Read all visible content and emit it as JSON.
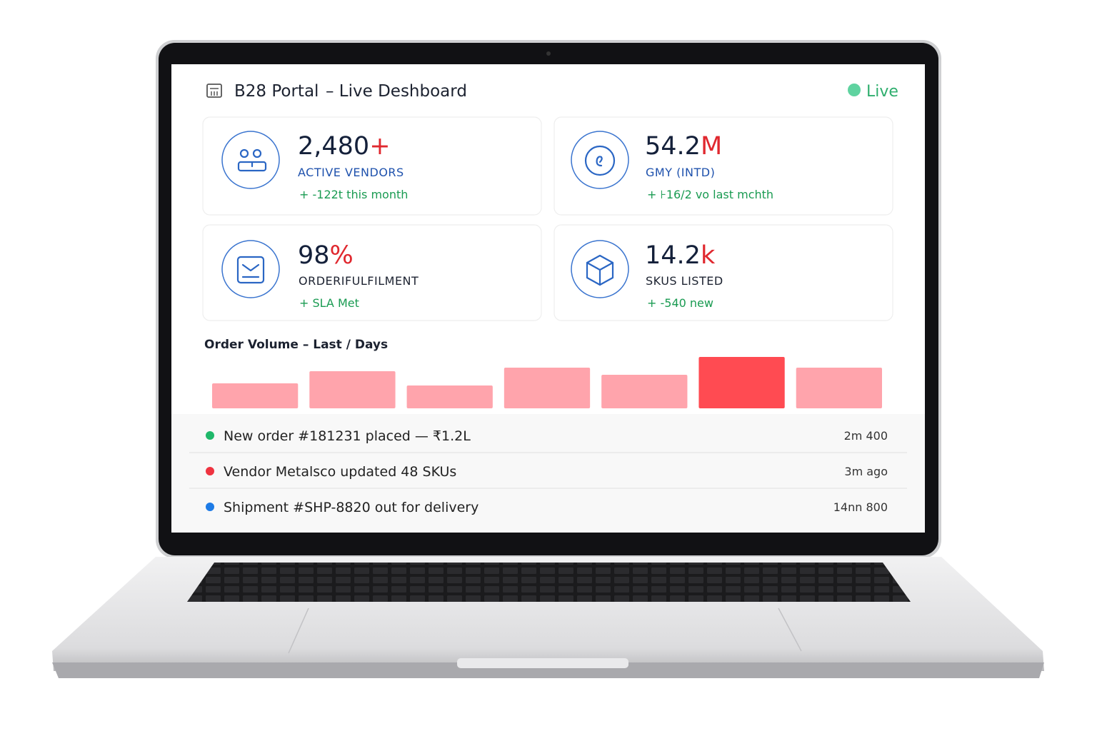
{
  "header": {
    "brand": "B28 Portal",
    "title": "– Live Deshboard",
    "status": "Live"
  },
  "kpis": [
    {
      "value": "2,480",
      "suffix": "+",
      "label": "ACTIVE VENDORS",
      "note": "+  -122t this month"
    },
    {
      "value": "54.2",
      "suffix": "M",
      "label": "GMY (INTD)",
      "note": "+  ⊦16/2 vo last mchth"
    },
    {
      "value": "98",
      "suffix": "%",
      "label": "ORDERIFULFILMENT",
      "note": "+  SLA Met"
    },
    {
      "value": "14.2",
      "suffix": "k",
      "label": "SKUS LISTED",
      "note": "+  -540 new"
    }
  ],
  "order_volume": {
    "title": "Order Volume – Last / Days",
    "values": [
      35,
      52,
      32,
      57,
      47,
      72,
      57
    ],
    "colors": [
      "#ffa4ac",
      "#ffa4ac",
      "#ffa4ac",
      "#ffa4ac",
      "#ffa4ac",
      "#ff4b52",
      "#ffa4ac"
    ]
  },
  "activity": [
    {
      "text": "New order #181231 placed — ₹1.2L",
      "time": "2m 400",
      "color": "#1fb86a"
    },
    {
      "text": "Vendor Metalsco updated 48 SKUs",
      "time": "3m ago",
      "color": "#ef3340"
    },
    {
      "text": "Shipment #SHP-8820 out for delivery",
      "time": "14nn 800",
      "color": "#1e7be6"
    }
  ]
}
